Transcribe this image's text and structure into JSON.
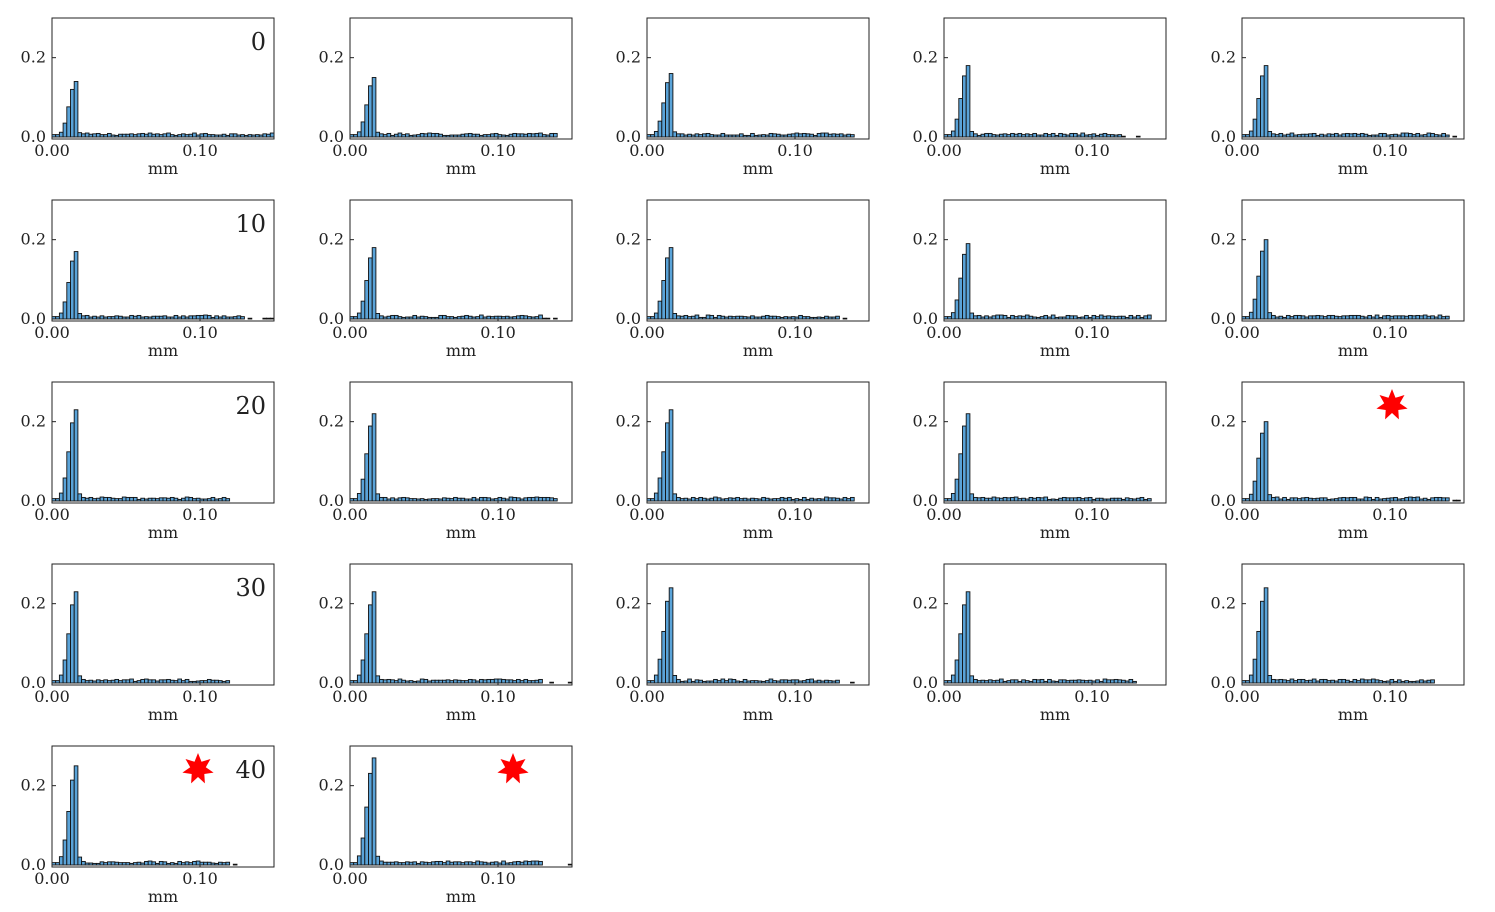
{
  "chart_data": {
    "type": "bar",
    "layout": "grid of 22 histogram panels, 5 columns",
    "x_axis_label": "mm",
    "x_ticks": [
      0.0,
      0.1
    ],
    "x_tick_labels": [
      "0.00",
      "0.10"
    ],
    "xlim": [
      0.0,
      0.15
    ],
    "y_ticks": [
      0.0,
      0.2
    ],
    "y_tick_labels": [
      "0.0",
      "0.2"
    ],
    "ylim": [
      0.0,
      0.3
    ],
    "bin_width": 0.0025,
    "bar_color": "#5aa3d8",
    "edge_color": "#111111",
    "marker_color": "#ff0000",
    "grid": false,
    "panels": [
      {
        "label": "0",
        "star": false,
        "peak_x": 0.0175,
        "peak": 0.14,
        "tail_end": 0.15
      },
      {
        "label": "",
        "star": false,
        "peak_x": 0.0175,
        "peak": 0.15,
        "tail_end": 0.14
      },
      {
        "label": "",
        "star": false,
        "peak_x": 0.0175,
        "peak": 0.16,
        "tail_end": 0.14
      },
      {
        "label": "",
        "star": false,
        "peak_x": 0.0175,
        "peak": 0.18,
        "tail_end": 0.12
      },
      {
        "label": "",
        "star": false,
        "peak_x": 0.0175,
        "peak": 0.18,
        "tail_end": 0.14
      },
      {
        "label": "10",
        "star": false,
        "peak_x": 0.0175,
        "peak": 0.17,
        "tail_end": 0.13
      },
      {
        "label": "",
        "star": false,
        "peak_x": 0.0175,
        "peak": 0.18,
        "tail_end": 0.13
      },
      {
        "label": "",
        "star": false,
        "peak_x": 0.0175,
        "peak": 0.18,
        "tail_end": 0.13
      },
      {
        "label": "",
        "star": false,
        "peak_x": 0.0175,
        "peak": 0.19,
        "tail_end": 0.14
      },
      {
        "label": "",
        "star": false,
        "peak_x": 0.0175,
        "peak": 0.2,
        "tail_end": 0.14
      },
      {
        "label": "20",
        "star": false,
        "peak_x": 0.0175,
        "peak": 0.23,
        "tail_end": 0.12
      },
      {
        "label": "",
        "star": false,
        "peak_x": 0.0175,
        "peak": 0.22,
        "tail_end": 0.14
      },
      {
        "label": "",
        "star": false,
        "peak_x": 0.0175,
        "peak": 0.23,
        "tail_end": 0.14
      },
      {
        "label": "",
        "star": false,
        "peak_x": 0.0175,
        "peak": 0.22,
        "tail_end": 0.14
      },
      {
        "label": "",
        "star": true,
        "peak_x": 0.0175,
        "peak": 0.2,
        "tail_end": 0.14
      },
      {
        "label": "30",
        "star": false,
        "peak_x": 0.0175,
        "peak": 0.23,
        "tail_end": 0.12
      },
      {
        "label": "",
        "star": false,
        "peak_x": 0.0175,
        "peak": 0.23,
        "tail_end": 0.13
      },
      {
        "label": "",
        "star": false,
        "peak_x": 0.0175,
        "peak": 0.24,
        "tail_end": 0.13
      },
      {
        "label": "",
        "star": false,
        "peak_x": 0.0175,
        "peak": 0.23,
        "tail_end": 0.13
      },
      {
        "label": "",
        "star": false,
        "peak_x": 0.0175,
        "peak": 0.24,
        "tail_end": 0.13
      },
      {
        "label": "40",
        "star": true,
        "peak_x": 0.0175,
        "peak": 0.25,
        "tail_end": 0.12
      },
      {
        "label": "",
        "star": true,
        "peak_x": 0.0175,
        "peak": 0.27,
        "tail_end": 0.13
      }
    ]
  }
}
